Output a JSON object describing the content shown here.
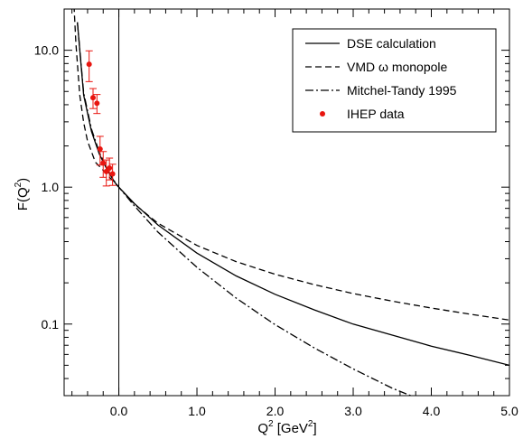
{
  "chart_data": {
    "type": "line",
    "xlabel": {
      "main": "Q",
      "sup": "2",
      "unit_pre": " [GeV",
      "unit_sup": "2",
      "unit_post": "]"
    },
    "ylabel": {
      "main": "F(Q",
      "sup": "2",
      "post": ")"
    },
    "xlim": [
      -0.7,
      5.0
    ],
    "ylim": [
      0.03,
      20.0
    ],
    "yscale": "log",
    "x_ticks": [
      {
        "value": 0.0,
        "label": "0.0"
      },
      {
        "value": 1.0,
        "label": "1.0"
      },
      {
        "value": 2.0,
        "label": "2.0"
      },
      {
        "value": 3.0,
        "label": "3.0"
      },
      {
        "value": 4.0,
        "label": "4.0"
      },
      {
        "value": 5.0,
        "label": "5.0"
      }
    ],
    "y_ticks": [
      {
        "value": 0.1,
        "label": "0.1"
      },
      {
        "value": 1.0,
        "label": "1.0"
      },
      {
        "value": 10.0,
        "label": "10.0"
      }
    ],
    "legend_position": "top-right",
    "series": [
      {
        "name": "DSE calculation",
        "style": "solid",
        "color": "#000000",
        "x": [
          -0.53,
          -0.45,
          -0.35,
          -0.25,
          -0.15,
          -0.05,
          0.0,
          0.2,
          0.5,
          1.0,
          1.5,
          2.0,
          2.5,
          3.0,
          3.5,
          4.0,
          4.5,
          5.0
        ],
        "y": [
          16.0,
          4.7,
          2.55,
          1.75,
          1.34,
          1.08,
          1.0,
          0.76,
          0.53,
          0.33,
          0.225,
          0.165,
          0.127,
          0.1,
          0.083,
          0.069,
          0.059,
          0.05
        ]
      },
      {
        "name": "VMD ω monopole",
        "style": "dashed",
        "color": "#000000",
        "x": [
          -0.58,
          -0.55,
          -0.5,
          -0.45,
          -0.4,
          -0.3,
          -0.2,
          -0.1,
          0.0,
          0.2,
          0.5,
          1.0,
          1.5,
          2.0,
          2.5,
          3.0,
          3.5,
          4.0,
          4.5,
          5.0
        ],
        "y": [
          25.0,
          11.3,
          4.7,
          2.97,
          2.17,
          1.52,
          1.33,
          1.15,
          1.0,
          0.751,
          0.545,
          0.375,
          0.286,
          0.231,
          0.194,
          0.167,
          0.147,
          0.131,
          0.118,
          0.107
        ]
      },
      {
        "name": "Mitchel-Tandy 1995",
        "style": "dashdot",
        "color": "#000000",
        "x": [
          -0.53,
          -0.45,
          -0.35,
          -0.25,
          -0.15,
          -0.05,
          0.0,
          0.2,
          0.5,
          1.0,
          1.5,
          2.0,
          2.5,
          3.0,
          3.5,
          3.8
        ],
        "y": [
          16.0,
          4.9,
          2.65,
          1.8,
          1.36,
          1.09,
          1.0,
          0.73,
          0.47,
          0.26,
          0.155,
          0.099,
          0.067,
          0.047,
          0.034,
          0.029
        ]
      }
    ],
    "data_points": {
      "name": "IHEP data",
      "color": "#e8150f",
      "points": [
        {
          "x": -0.38,
          "y": 7.9,
          "err": 2.0
        },
        {
          "x": -0.33,
          "y": 4.5,
          "err": 0.75
        },
        {
          "x": -0.28,
          "y": 4.1,
          "err": 0.65
        },
        {
          "x": -0.24,
          "y": 1.9,
          "err": 0.45
        },
        {
          "x": -0.2,
          "y": 1.5,
          "err": 0.32
        },
        {
          "x": -0.16,
          "y": 1.3,
          "err": 0.28
        },
        {
          "x": -0.12,
          "y": 1.38,
          "err": 0.25
        },
        {
          "x": -0.08,
          "y": 1.25,
          "err": 0.22
        }
      ]
    },
    "vertical_line_at_x": 0.0
  }
}
